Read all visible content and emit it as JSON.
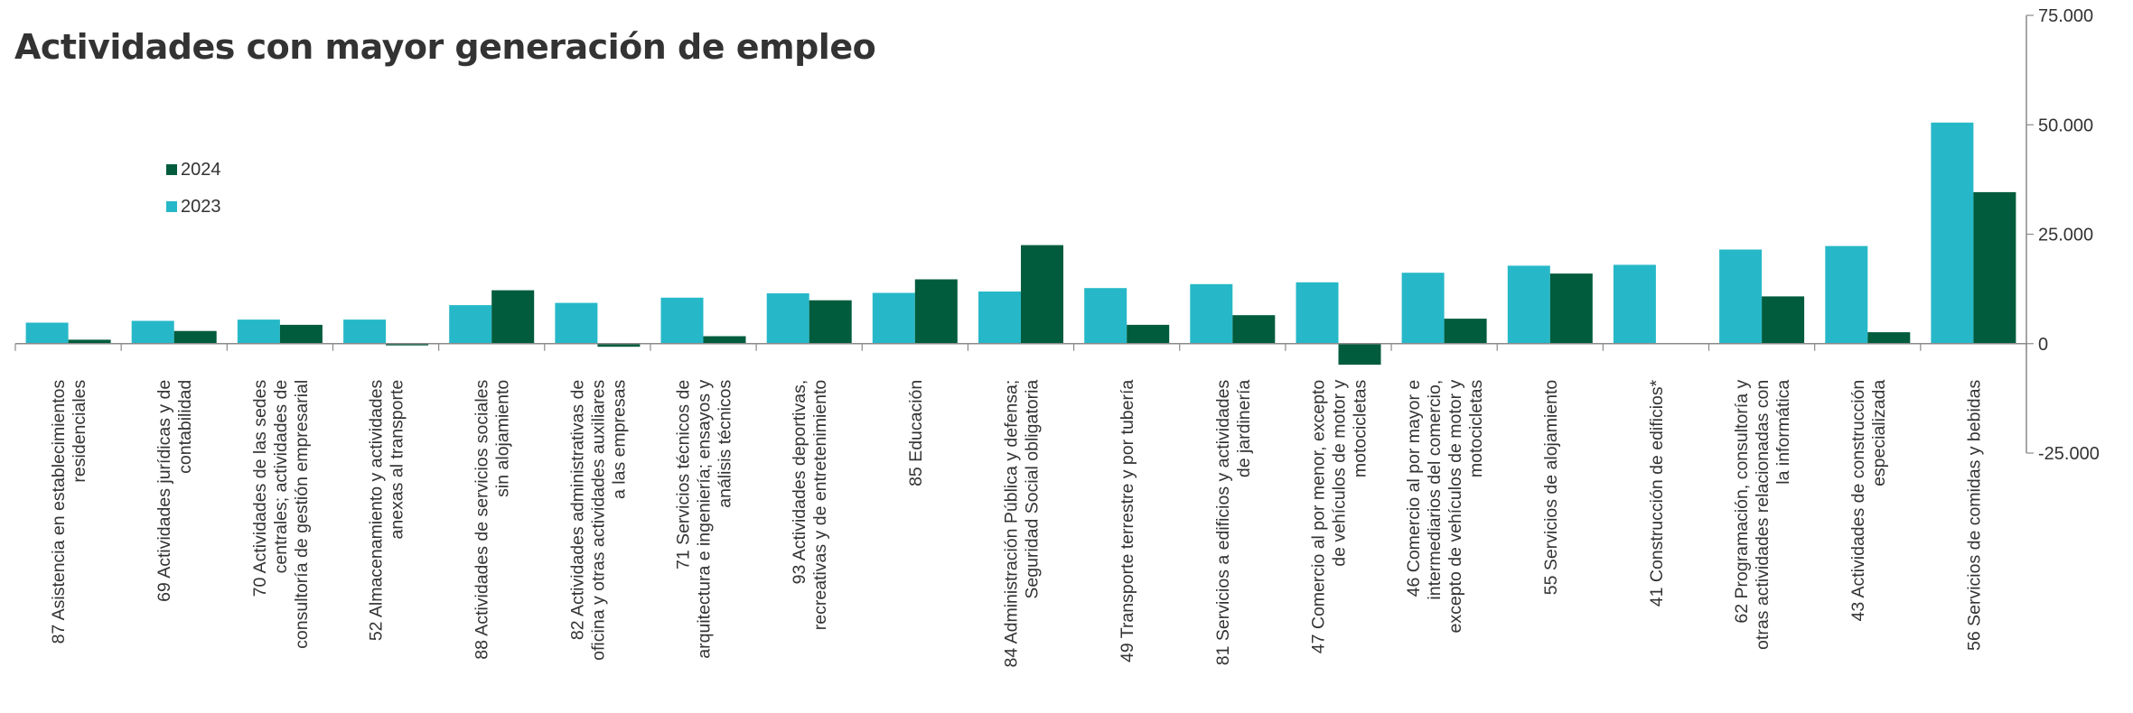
{
  "chart_data": {
    "type": "bar",
    "title": "Actividades con mayor generación de empleo",
    "xlabel": "",
    "ylabel": "",
    "ylim": [
      -25000,
      75000
    ],
    "y_ticks": [
      "75.000",
      "50.000",
      "25.000",
      "0",
      "-25.000"
    ],
    "y_tick_values": [
      75000,
      50000,
      25000,
      0,
      -25000
    ],
    "axis_side": "right",
    "grid": false,
    "legend_placement": "top-left",
    "categories": [
      "87 Asistencia en establecimientos residenciales",
      "69 Actividades jurídicas y de contabilidad",
      "70 Actividades de las sedes centrales; actividades de consultoría de gestión empresarial",
      "52 Almacenamiento y actividades anexas al transporte",
      "88 Actividades de servicios sociales sin alojamiento",
      "82 Actividades administrativas de oficina y otras actividades auxiliares a las empresas",
      "71 Servicios técnicos de arquitectura e ingeniería; ensayos y análisis técnicos",
      "93 Actividades deportivas, recreativas y de entretenimiento",
      "85 Educación",
      "84 Administración Pública y defensa; Seguridad Social obligatoria",
      "49 Transporte terrestre y por tubería",
      "81 Servicios a edificios y actividades de jardinería",
      "47 Comercio al por menor, excepto de vehículos de motor y motocicletas",
      "46 Comercio al por mayor e intermediarios del comercio, excepto de vehículos de motor y motocicletas",
      "55 Servicios de alojamiento",
      "41 Construcción de edificios*",
      "62 Programación, consultoría y otras actividades relacionadas con la informática",
      "43 Actividades de construcción especializada",
      "56 Servicios de comidas y bebidas"
    ],
    "category_label_lines": [
      [
        "87 Asistencia en establecimientos",
        "residenciales"
      ],
      [
        "69 Actividades jurídicas y de",
        "contabilidad"
      ],
      [
        "70 Actividades de las sedes",
        "centrales; actividades de",
        "consultoría de gestión empresarial"
      ],
      [
        "52 Almacenamiento y actividades",
        "anexas al transporte"
      ],
      [
        "88 Actividades de servicios sociales",
        "sin alojamiento"
      ],
      [
        "82 Actividades administrativas de",
        "oficina y otras actividades auxiliares",
        "a las empresas"
      ],
      [
        "71 Servicios técnicos de",
        "arquitectura e ingeniería; ensayos y",
        "análisis técnicos"
      ],
      [
        "93 Actividades deportivas,",
        "recreativas y de entretenimiento"
      ],
      [
        "85 Educación"
      ],
      [
        "84 Administración Pública y defensa;",
        "Seguridad Social obligatoria"
      ],
      [
        "49 Transporte terrestre y por tubería"
      ],
      [
        "81 Servicios a edificios y actividades",
        "de jardinería"
      ],
      [
        "47 Comercio al por menor, excepto",
        "de vehículos de motor y",
        "motocicletas"
      ],
      [
        "46 Comercio al por mayor e",
        "intermediarios del comercio,",
        "excepto de vehículos de motor y",
        "motocicletas"
      ],
      [
        "55 Servicios de alojamiento"
      ],
      [
        "41 Construcción de edificios*"
      ],
      [
        "62 Programación, consultoría y",
        "otras actividades relacionadas con",
        "la informática"
      ],
      [
        "43 Actividades de construcción",
        "especializada"
      ],
      [
        "56 Servicios de comidas y bebidas"
      ]
    ],
    "series": [
      {
        "name": "2023",
        "color": "#26b8c8",
        "values": [
          4800,
          5200,
          5500,
          5500,
          8800,
          9300,
          10500,
          11500,
          11600,
          11900,
          12700,
          13600,
          14000,
          16200,
          17800,
          18000,
          21500,
          22300,
          50500
        ]
      },
      {
        "name": "2024",
        "color": "#005c3c",
        "values": [
          900,
          2900,
          4300,
          -400,
          12200,
          -700,
          1700,
          9900,
          14700,
          22500,
          4300,
          6500,
          -4800,
          5700,
          16000,
          0,
          10800,
          2600,
          34600
        ]
      }
    ],
    "legend_order": [
      "2024",
      "2023"
    ],
    "zero_line_color": "#8a8a8a"
  }
}
